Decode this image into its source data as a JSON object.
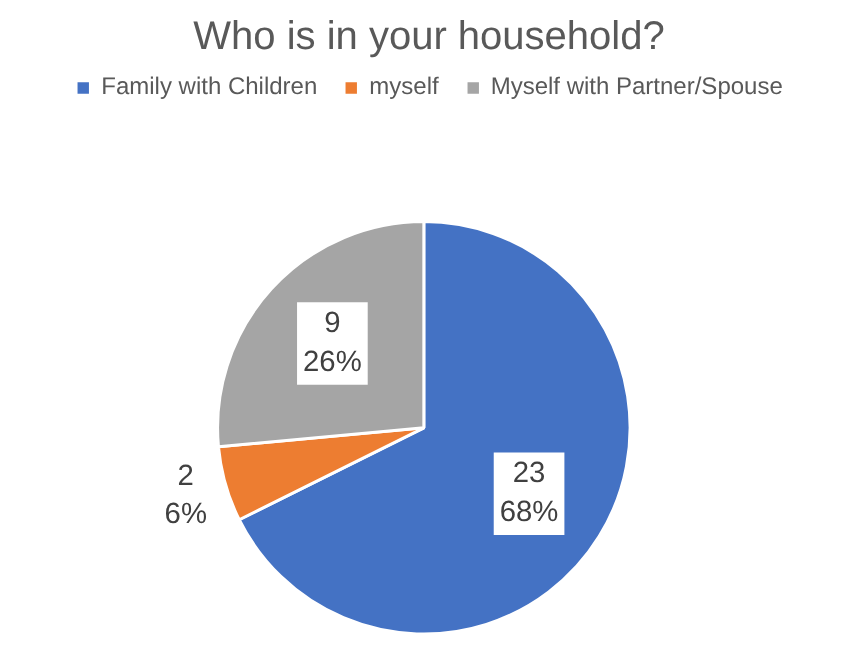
{
  "chart_data": {
    "type": "pie",
    "title": "Who is in your household?",
    "categories": [
      "Family with Children",
      "myself",
      "Myself with Partner/Spouse"
    ],
    "values": [
      23,
      2,
      9
    ],
    "colors": [
      "#4472c4",
      "#ed7d31",
      "#a5a5a5"
    ],
    "value_labels": [
      "23\n68%",
      "2\n6%",
      "9\n26%"
    ],
    "legend": "top"
  }
}
